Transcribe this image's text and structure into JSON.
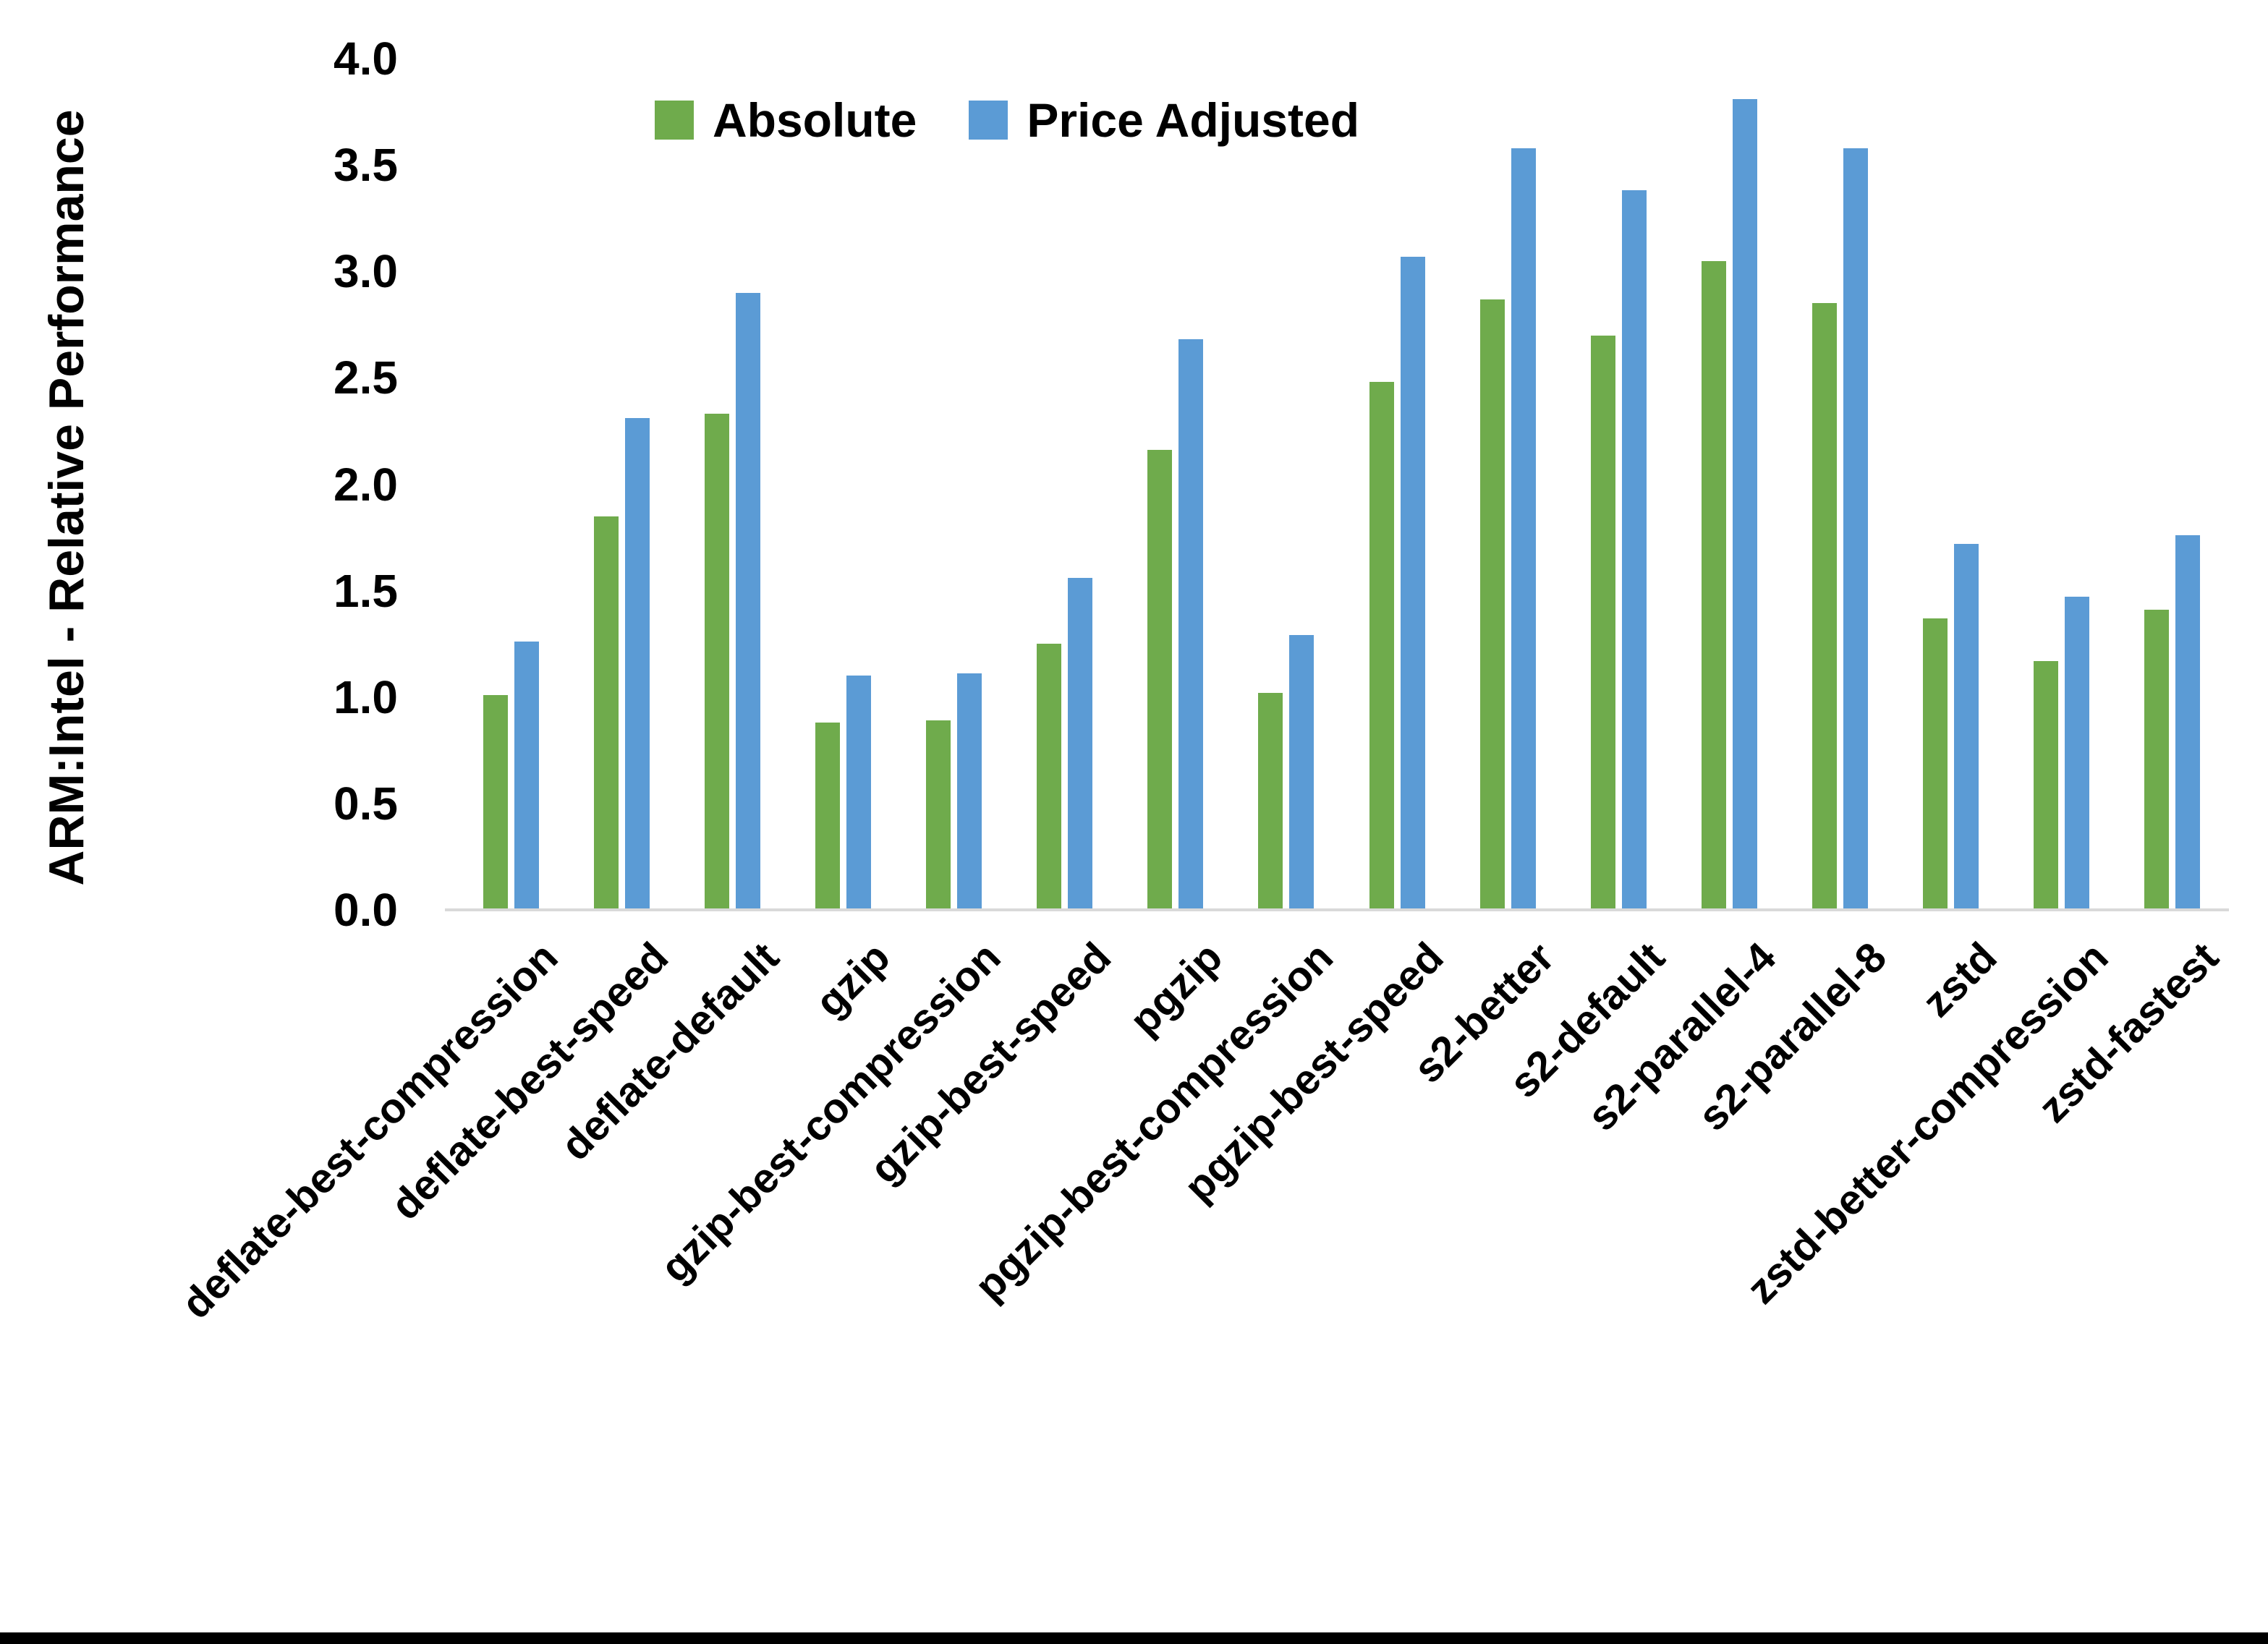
{
  "chart_data": {
    "type": "bar",
    "title": "",
    "xlabel": "",
    "ylabel": "ARM:Intel - Relative Performance",
    "ylim": [
      0.0,
      4.0
    ],
    "ytick_step": 0.5,
    "ytick_labels": [
      "0.0",
      "0.5",
      "1.0",
      "1.5",
      "2.0",
      "2.5",
      "3.0",
      "3.5",
      "4.0"
    ],
    "grid": false,
    "legend_position": "top-center",
    "categories": [
      "deflate-best-compression",
      "deflate-best-speed",
      "deflate-default",
      "gzip",
      "gzip-best-compression",
      "gzip-best-speed",
      "pgzip",
      "pgzip-best-compression",
      "pgzip-best-speed",
      "s2-better",
      "s2-default",
      "s2-parallel-4",
      "s2-parallel-8",
      "zstd",
      "zstd-better-compression",
      "zstd-fastest"
    ],
    "series": [
      {
        "name": "Absolute",
        "color": "#6FAB4C",
        "values": [
          1.01,
          1.85,
          2.33,
          0.88,
          0.89,
          1.25,
          2.16,
          1.02,
          2.48,
          2.87,
          2.7,
          3.05,
          2.85,
          1.37,
          1.17,
          1.41
        ]
      },
      {
        "name": "Price Adjusted",
        "color": "#5B9BD5",
        "values": [
          1.26,
          2.31,
          2.9,
          1.1,
          1.11,
          1.56,
          2.68,
          1.29,
          3.07,
          3.58,
          3.38,
          3.81,
          3.58,
          1.72,
          1.47,
          1.76
        ]
      }
    ],
    "axis_line_color": "#D9D9D9",
    "text_color": "#000000",
    "background_color": "#FFFFFF",
    "bottom_border_color": "#000000"
  }
}
